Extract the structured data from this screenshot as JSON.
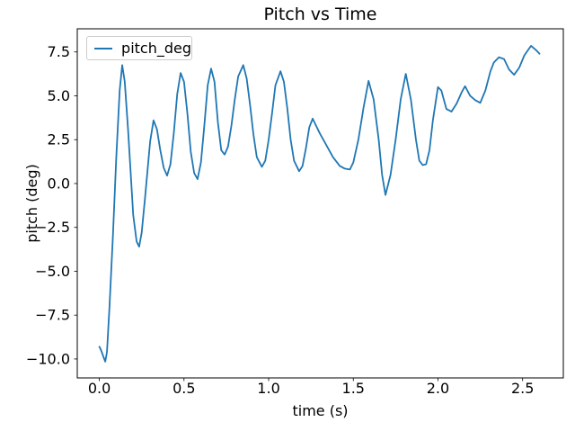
{
  "chart_data": {
    "type": "line",
    "title": "Pitch vs Time",
    "xlabel": "time (s)",
    "ylabel": "pitch (deg)",
    "xlim": [
      -0.1305,
      2.7405
    ],
    "ylim": [
      -11.08,
      8.82
    ],
    "grid": false,
    "legend": {
      "position": "upper left",
      "entries": [
        "pitch_deg"
      ]
    },
    "x_ticks": {
      "values": [
        0.0,
        0.5,
        1.0,
        1.5,
        2.0,
        2.5
      ],
      "labels": [
        "0.0",
        "0.5",
        "1.0",
        "1.5",
        "2.0",
        "2.5"
      ]
    },
    "y_ticks": {
      "values": [
        7.5,
        5.0,
        2.5,
        0.0,
        -2.5,
        -5.0,
        -7.5,
        -10.0
      ],
      "labels": [
        "7.5",
        "5.0",
        "2.5",
        "0.0",
        "−2.5",
        "−5.0",
        "−7.5",
        "−10.0"
      ]
    },
    "series": [
      {
        "name": "pitch_deg",
        "color": "#1f77b4",
        "x": [
          0.0,
          0.01,
          0.025,
          0.035,
          0.045,
          0.06,
          0.08,
          0.1,
          0.12,
          0.135,
          0.15,
          0.17,
          0.2,
          0.22,
          0.235,
          0.25,
          0.27,
          0.3,
          0.32,
          0.34,
          0.36,
          0.38,
          0.4,
          0.42,
          0.44,
          0.46,
          0.48,
          0.5,
          0.52,
          0.54,
          0.56,
          0.58,
          0.6,
          0.62,
          0.64,
          0.66,
          0.68,
          0.7,
          0.72,
          0.74,
          0.76,
          0.78,
          0.8,
          0.82,
          0.85,
          0.87,
          0.89,
          0.91,
          0.93,
          0.96,
          0.98,
          1.0,
          1.02,
          1.04,
          1.07,
          1.09,
          1.11,
          1.13,
          1.15,
          1.18,
          1.2,
          1.22,
          1.24,
          1.26,
          1.28,
          1.3,
          1.34,
          1.38,
          1.42,
          1.45,
          1.48,
          1.5,
          1.53,
          1.56,
          1.59,
          1.62,
          1.65,
          1.67,
          1.69,
          1.72,
          1.75,
          1.78,
          1.81,
          1.84,
          1.87,
          1.89,
          1.91,
          1.93,
          1.95,
          1.97,
          2.0,
          2.02,
          2.05,
          2.08,
          2.11,
          2.14,
          2.16,
          2.19,
          2.22,
          2.25,
          2.28,
          2.31,
          2.33,
          2.36,
          2.39,
          2.42,
          2.45,
          2.48,
          2.51,
          2.55,
          2.58,
          2.6
        ],
        "y": [
          -9.3,
          -9.5,
          -9.9,
          -10.15,
          -9.6,
          -7.0,
          -3.0,
          1.5,
          5.3,
          6.75,
          5.8,
          3.0,
          -1.8,
          -3.3,
          -3.6,
          -2.8,
          -0.8,
          2.4,
          3.6,
          3.1,
          1.9,
          0.9,
          0.45,
          1.1,
          2.9,
          5.1,
          6.3,
          5.8,
          4.0,
          1.8,
          0.6,
          0.25,
          1.2,
          3.3,
          5.6,
          6.55,
          5.8,
          3.5,
          1.9,
          1.65,
          2.1,
          3.3,
          4.8,
          6.1,
          6.75,
          6.0,
          4.5,
          2.8,
          1.5,
          0.95,
          1.3,
          2.5,
          4.0,
          5.6,
          6.4,
          5.8,
          4.3,
          2.5,
          1.3,
          0.7,
          1.0,
          2.0,
          3.2,
          3.7,
          3.3,
          2.9,
          2.2,
          1.5,
          1.0,
          0.85,
          0.8,
          1.2,
          2.5,
          4.3,
          5.85,
          4.8,
          2.5,
          0.5,
          -0.65,
          0.5,
          2.5,
          4.8,
          6.25,
          4.8,
          2.5,
          1.3,
          1.05,
          1.1,
          1.9,
          3.6,
          5.5,
          5.3,
          4.25,
          4.1,
          4.55,
          5.2,
          5.55,
          5.0,
          4.75,
          4.6,
          5.3,
          6.4,
          6.9,
          7.2,
          7.1,
          6.5,
          6.2,
          6.6,
          7.3,
          7.85,
          7.6,
          7.4
        ]
      }
    ],
    "colors": {
      "line": "#1f77b4",
      "spine": "#000000",
      "legend_border": "#cccccc",
      "text": "#000000"
    }
  }
}
